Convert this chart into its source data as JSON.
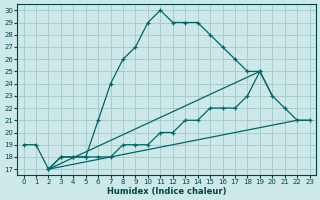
{
  "xlabel": "Humidex (Indice chaleur)",
  "bg_color": "#cce8e8",
  "grid_color": "#aacccc",
  "line_color": "#006666",
  "xlim": [
    -0.5,
    23.5
  ],
  "ylim": [
    16.5,
    30.5
  ],
  "xticks": [
    0,
    1,
    2,
    3,
    4,
    5,
    6,
    7,
    8,
    9,
    10,
    11,
    12,
    13,
    14,
    15,
    16,
    17,
    18,
    19,
    20,
    21,
    22,
    23
  ],
  "yticks": [
    17,
    18,
    19,
    20,
    21,
    22,
    23,
    24,
    25,
    26,
    27,
    28,
    29,
    30
  ],
  "line1_x": [
    0,
    1,
    2,
    3,
    4,
    5,
    6,
    7,
    8,
    9,
    10,
    11,
    12,
    13,
    14,
    15,
    16,
    17,
    18,
    19
  ],
  "line1_y": [
    19,
    19,
    17,
    18,
    18,
    18,
    21,
    24,
    26,
    27,
    29,
    30,
    29,
    29,
    29,
    28,
    27,
    26,
    25,
    25
  ],
  "line2_x": [
    2,
    3,
    4,
    5,
    6,
    7,
    8,
    9,
    10,
    11,
    12,
    13,
    14,
    15,
    16,
    17,
    18,
    19,
    20,
    21,
    22,
    23
  ],
  "line2_y": [
    17,
    18,
    18,
    18,
    18,
    18,
    19,
    19,
    19,
    20,
    20,
    21,
    21,
    22,
    22,
    22,
    23,
    25,
    23,
    22,
    21,
    21
  ],
  "line3_x": [
    2,
    22,
    23
  ],
  "line3_y": [
    17,
    21,
    21
  ],
  "line4_x": [
    2,
    19,
    20
  ],
  "line4_y": [
    17,
    25,
    23
  ]
}
